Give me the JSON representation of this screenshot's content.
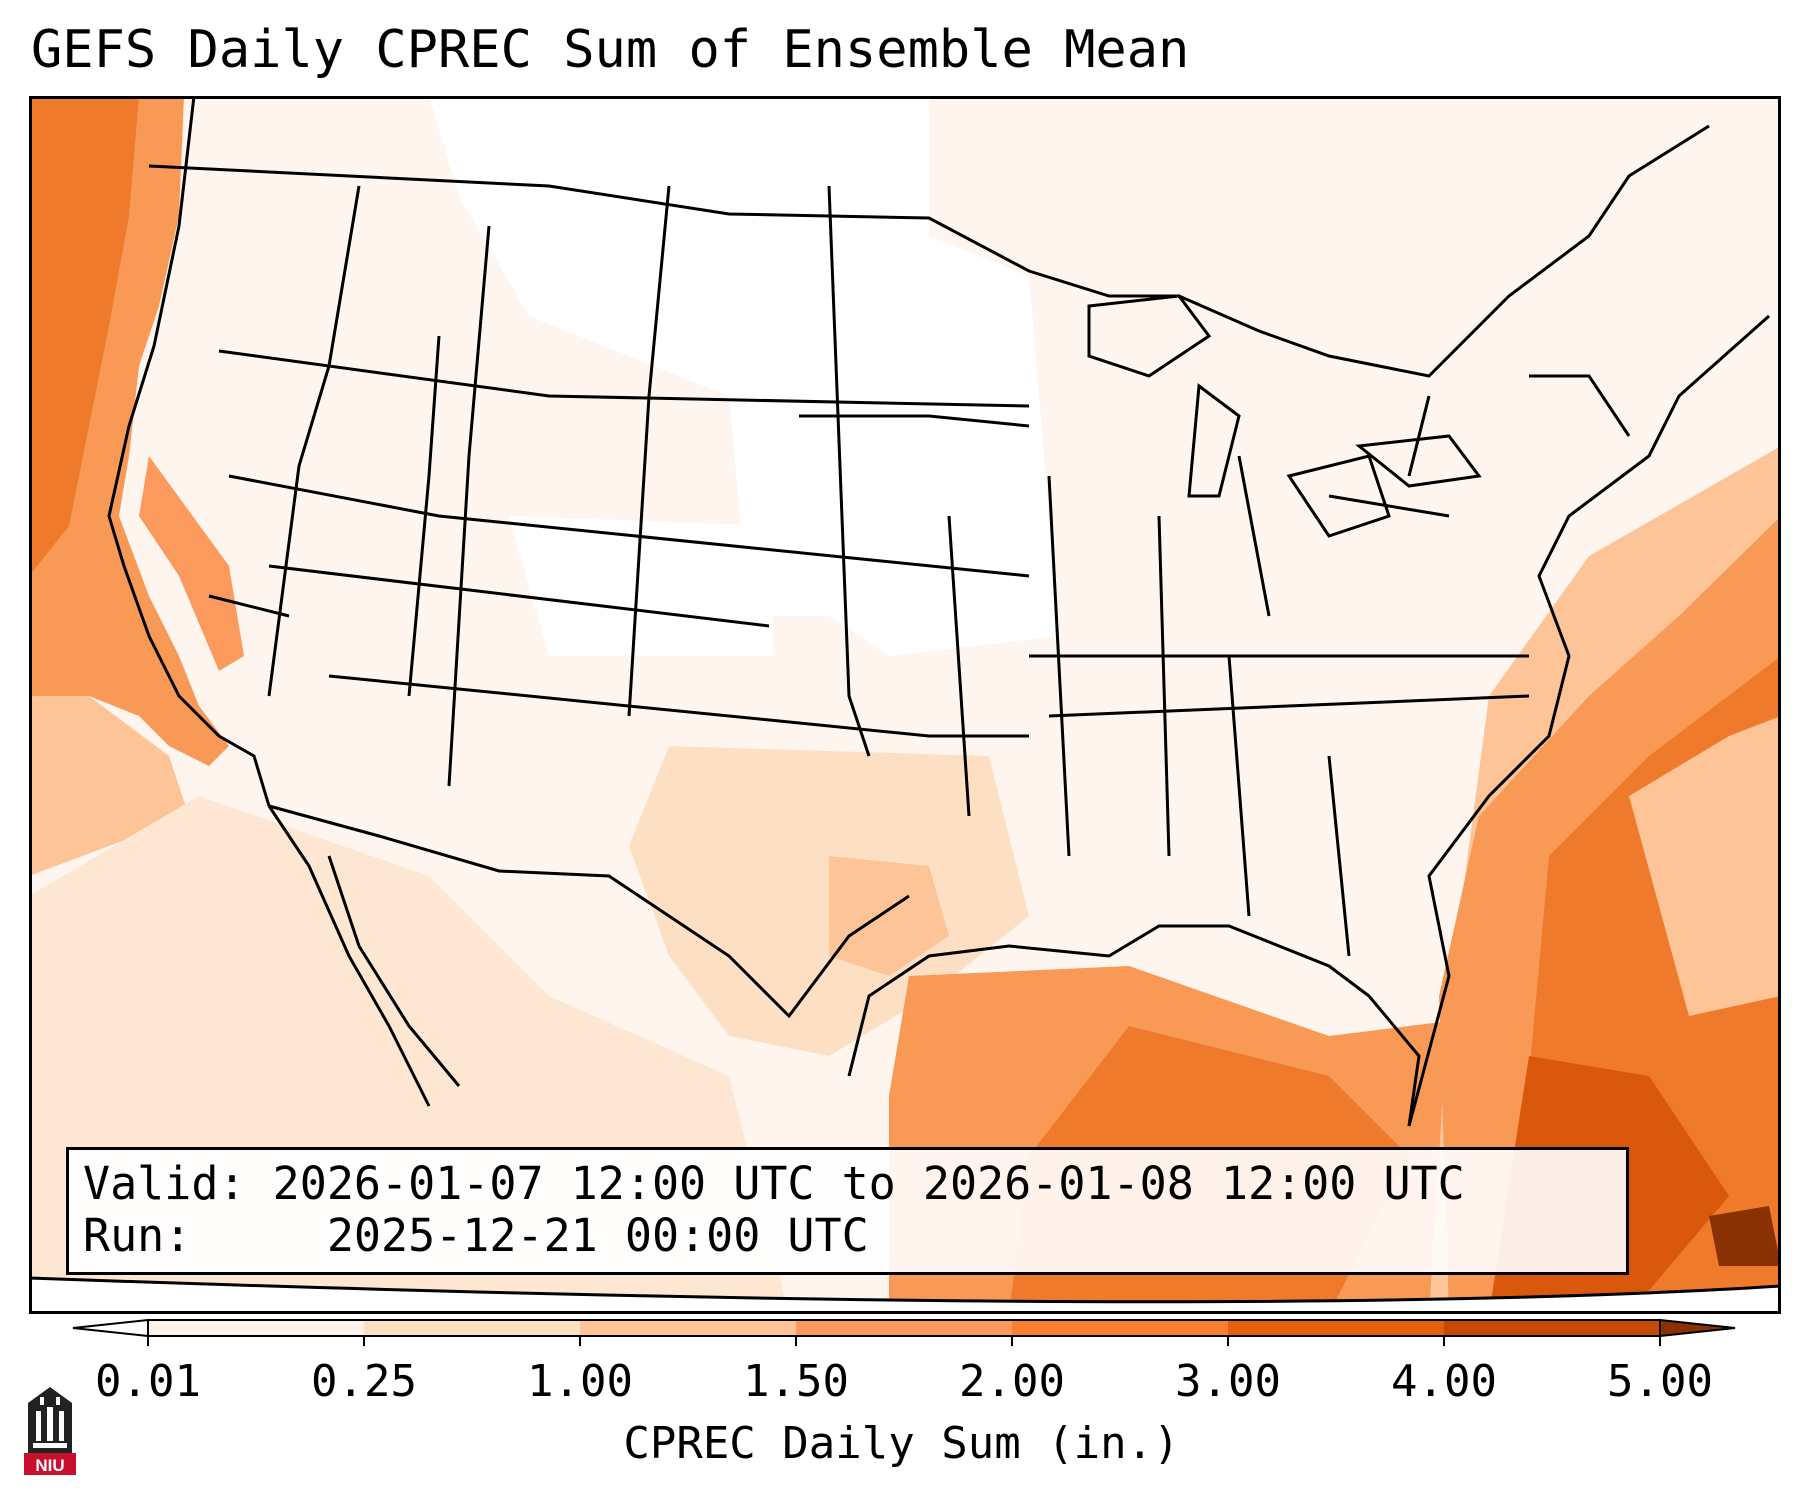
{
  "title": "GEFS Daily CPREC Sum of Ensemble Mean",
  "info": {
    "valid_label": "Valid:",
    "valid_value": "2026-01-07 12:00 UTC to 2026-01-08 12:00 UTC",
    "run_label": "Run:",
    "run_value": "2025-12-21 00:00 UTC"
  },
  "colorbar": {
    "label": "CPREC Daily Sum (in.)",
    "ticks": [
      "0.01",
      "0.25",
      "1.00",
      "1.50",
      "2.00",
      "3.00",
      "4.00",
      "5.00"
    ],
    "colors": [
      "#fef3e8",
      "#fde0c4",
      "#fcc497",
      "#fb9a5c",
      "#f77f2f",
      "#e8600f",
      "#c64a05",
      "#8a3104"
    ],
    "extend": "both"
  },
  "logo": {
    "text": "NIU",
    "color": "#c8102e"
  },
  "colors": {
    "land_base": "#fef6ee",
    "ocean_pacific": "#f89a55",
    "ocean_atlantic": "#f4a261",
    "border": "#000000"
  }
}
